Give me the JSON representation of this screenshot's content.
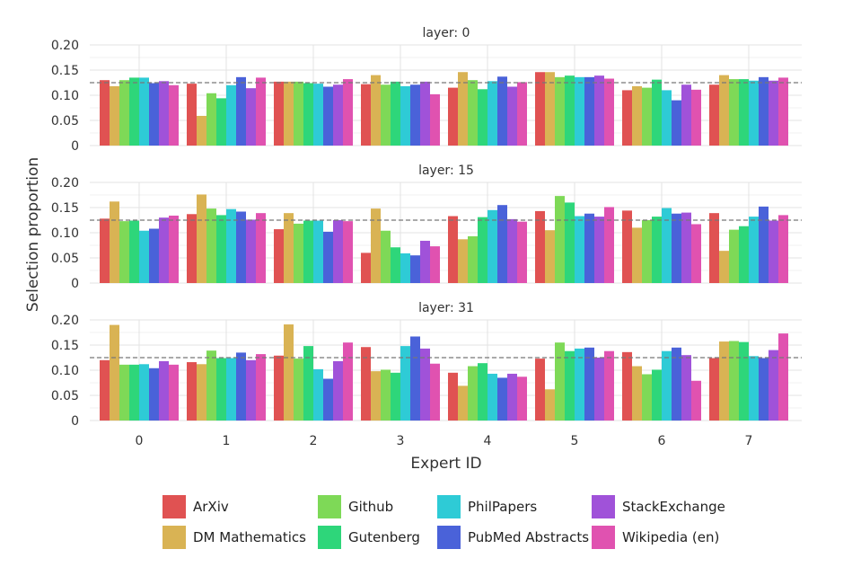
{
  "chart_data": {
    "type": "bar",
    "ylabel": "Selection proportion",
    "xlabel": "Expert ID",
    "categories": [
      "0",
      "1",
      "2",
      "3",
      "4",
      "5",
      "6",
      "7"
    ],
    "ylim": [
      0,
      0.2
    ],
    "yticks": [
      "0",
      "0.05",
      "0.10",
      "0.15",
      "0.20"
    ],
    "reference_line": 0.125,
    "grid": true,
    "legend_placement": "bottom",
    "series_names": [
      "ArXiv",
      "DM Mathematics",
      "Github",
      "Gutenberg",
      "PhilPapers",
      "PubMed Abstracts",
      "StackExchange",
      "Wikipedia (en)"
    ],
    "colors": [
      "#e05252",
      "#d9b354",
      "#7ed957",
      "#2ed67a",
      "#2ecbd6",
      "#4a62d9",
      "#a052d9",
      "#e052b0"
    ],
    "panels": [
      {
        "title": "layer: 0",
        "values": [
          [
            0.13,
            0.118,
            0.13,
            0.135,
            0.135,
            0.124,
            0.128,
            0.12
          ],
          [
            0.123,
            0.059,
            0.104,
            0.094,
            0.12,
            0.136,
            0.114,
            0.135
          ],
          [
            0.127,
            0.127,
            0.127,
            0.124,
            0.123,
            0.117,
            0.121,
            0.132
          ],
          [
            0.122,
            0.14,
            0.121,
            0.127,
            0.118,
            0.121,
            0.127,
            0.102
          ],
          [
            0.115,
            0.146,
            0.13,
            0.112,
            0.128,
            0.137,
            0.117,
            0.126
          ],
          [
            0.146,
            0.146,
            0.136,
            0.139,
            0.136,
            0.136,
            0.139,
            0.133
          ],
          [
            0.11,
            0.118,
            0.115,
            0.131,
            0.11,
            0.09,
            0.121,
            0.111
          ],
          [
            0.121,
            0.14,
            0.132,
            0.132,
            0.129,
            0.136,
            0.129,
            0.135
          ]
        ]
      },
      {
        "title": "layer: 15",
        "values": [
          [
            0.128,
            0.162,
            0.123,
            0.124,
            0.104,
            0.108,
            0.13,
            0.134
          ],
          [
            0.137,
            0.176,
            0.148,
            0.135,
            0.147,
            0.142,
            0.126,
            0.139
          ],
          [
            0.107,
            0.139,
            0.118,
            0.124,
            0.124,
            0.102,
            0.125,
            0.123
          ],
          [
            0.06,
            0.148,
            0.104,
            0.071,
            0.059,
            0.055,
            0.084,
            0.073
          ],
          [
            0.133,
            0.087,
            0.093,
            0.131,
            0.145,
            0.155,
            0.127,
            0.122
          ],
          [
            0.143,
            0.105,
            0.173,
            0.16,
            0.133,
            0.138,
            0.132,
            0.151
          ],
          [
            0.144,
            0.11,
            0.125,
            0.132,
            0.149,
            0.138,
            0.14,
            0.117
          ],
          [
            0.139,
            0.064,
            0.106,
            0.113,
            0.132,
            0.152,
            0.124,
            0.135
          ]
        ]
      },
      {
        "title": "layer: 31",
        "values": [
          [
            0.12,
            0.19,
            0.111,
            0.111,
            0.112,
            0.104,
            0.118,
            0.111
          ],
          [
            0.116,
            0.112,
            0.139,
            0.124,
            0.124,
            0.135,
            0.12,
            0.132
          ],
          [
            0.129,
            0.191,
            0.123,
            0.148,
            0.102,
            0.083,
            0.118,
            0.155
          ],
          [
            0.146,
            0.098,
            0.101,
            0.095,
            0.148,
            0.167,
            0.143,
            0.113
          ],
          [
            0.095,
            0.069,
            0.108,
            0.114,
            0.093,
            0.085,
            0.093,
            0.087
          ],
          [
            0.123,
            0.062,
            0.155,
            0.138,
            0.143,
            0.145,
            0.125,
            0.138
          ],
          [
            0.136,
            0.108,
            0.092,
            0.101,
            0.138,
            0.145,
            0.13,
            0.079
          ],
          [
            0.124,
            0.157,
            0.158,
            0.156,
            0.128,
            0.124,
            0.14,
            0.173
          ]
        ]
      }
    ]
  }
}
